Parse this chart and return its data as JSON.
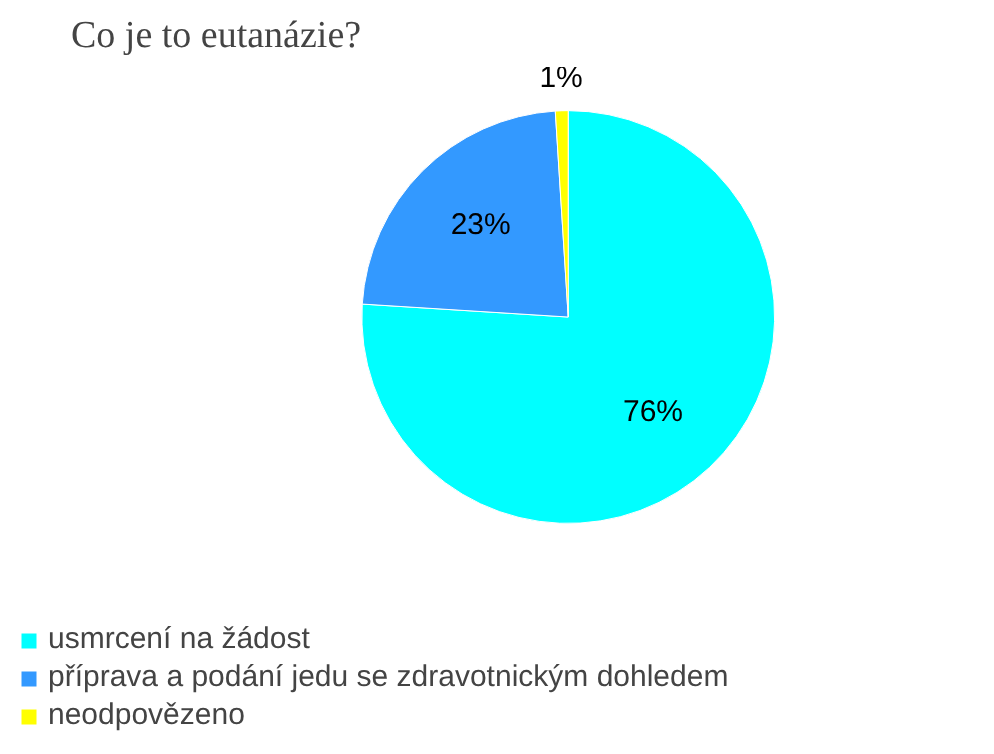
{
  "chart_data": {
    "type": "pie",
    "title": "Co je to eutanázie?",
    "categories": [
      "usmrcení na žádost",
      "příprava a podání jedu se zdravotnickým dohledem",
      "neodpovězeno"
    ],
    "values": [
      76,
      23,
      1
    ],
    "colors": [
      "#00ffff",
      "#3399ff",
      "#ffff00"
    ],
    "value_labels": [
      "76%",
      "23%",
      "1%"
    ],
    "legend": "bottom"
  }
}
